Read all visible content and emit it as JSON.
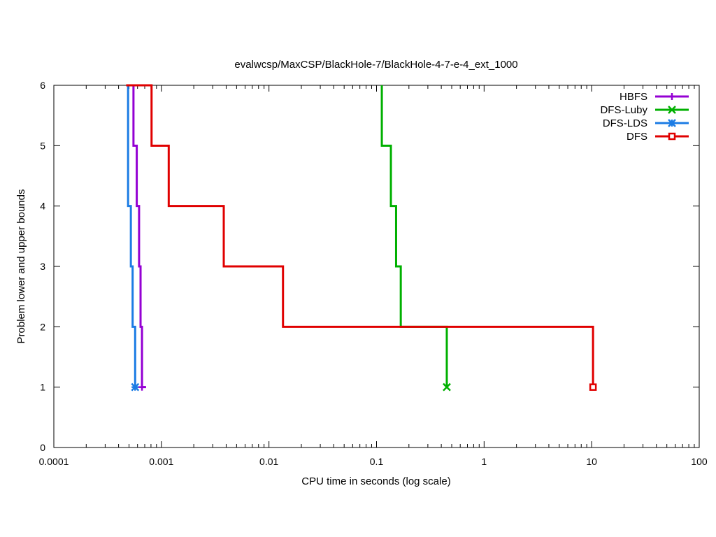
{
  "chart_data": {
    "type": "line",
    "title": "evalwcsp/MaxCSP/BlackHole-7/BlackHole-4-7-e-4_ext_1000",
    "xlabel": "CPU time in seconds (log scale)",
    "ylabel": "Problem lower and upper bounds",
    "xscale": "log",
    "xlim": [
      0.0001,
      100
    ],
    "ylim": [
      0,
      6
    ],
    "x_ticks": [
      {
        "value": 0.0001,
        "label": "0.0001"
      },
      {
        "value": 0.001,
        "label": "0.001"
      },
      {
        "value": 0.01,
        "label": "0.01"
      },
      {
        "value": 0.1,
        "label": "0.1"
      },
      {
        "value": 1,
        "label": "1"
      },
      {
        "value": 10,
        "label": "10"
      },
      {
        "value": 100,
        "label": "100"
      }
    ],
    "y_ticks": [
      {
        "value": 0,
        "label": "0"
      },
      {
        "value": 1,
        "label": "1"
      },
      {
        "value": 2,
        "label": "2"
      },
      {
        "value": 3,
        "label": "3"
      },
      {
        "value": 4,
        "label": "4"
      },
      {
        "value": 5,
        "label": "5"
      },
      {
        "value": 6,
        "label": "6"
      }
    ],
    "grid": false,
    "legend_position": "top-right",
    "series": [
      {
        "name": "HBFS",
        "color": "#9400d3",
        "marker": "plus",
        "upper_bound": [
          [
            0.00055,
            6
          ],
          [
            0.00055,
            5
          ],
          [
            0.00059,
            5
          ],
          [
            0.00059,
            4
          ],
          [
            0.00062,
            4
          ],
          [
            0.00062,
            3
          ],
          [
            0.00064,
            3
          ],
          [
            0.00064,
            2
          ],
          [
            0.00066,
            2
          ],
          [
            0.00066,
            1
          ],
          [
            0.00072,
            1
          ]
        ],
        "end_point": [
          0.00066,
          1
        ]
      },
      {
        "name": "DFS-Luby",
        "color": "#00b000",
        "marker": "x",
        "upper_bound": [
          [
            0.112,
            6
          ],
          [
            0.112,
            5
          ],
          [
            0.136,
            5
          ],
          [
            0.136,
            4
          ],
          [
            0.152,
            4
          ],
          [
            0.152,
            3
          ],
          [
            0.168,
            3
          ],
          [
            0.168,
            2
          ],
          [
            0.45,
            2
          ],
          [
            0.45,
            1
          ]
        ],
        "end_point": [
          0.45,
          1
        ]
      },
      {
        "name": "DFS-LDS",
        "color": "#1c7ce4",
        "marker": "star",
        "upper_bound": [
          [
            0.00049,
            6
          ],
          [
            0.00049,
            4
          ],
          [
            0.00052,
            4
          ],
          [
            0.00052,
            3
          ],
          [
            0.00054,
            3
          ],
          [
            0.00054,
            2
          ],
          [
            0.00057,
            2
          ],
          [
            0.00057,
            1
          ]
        ],
        "end_point": [
          0.00057,
          1
        ]
      },
      {
        "name": "DFS",
        "color": "#e00000",
        "marker": "square",
        "upper_bound": [
          [
            0.00047,
            6
          ],
          [
            0.00081,
            6
          ],
          [
            0.00081,
            5
          ],
          [
            0.00117,
            5
          ],
          [
            0.00117,
            4
          ],
          [
            0.0038,
            4
          ],
          [
            0.0038,
            3
          ],
          [
            0.0135,
            3
          ],
          [
            0.0135,
            2
          ],
          [
            10.3,
            2
          ],
          [
            10.3,
            1
          ]
        ],
        "end_point": [
          10.3,
          1
        ]
      }
    ]
  }
}
